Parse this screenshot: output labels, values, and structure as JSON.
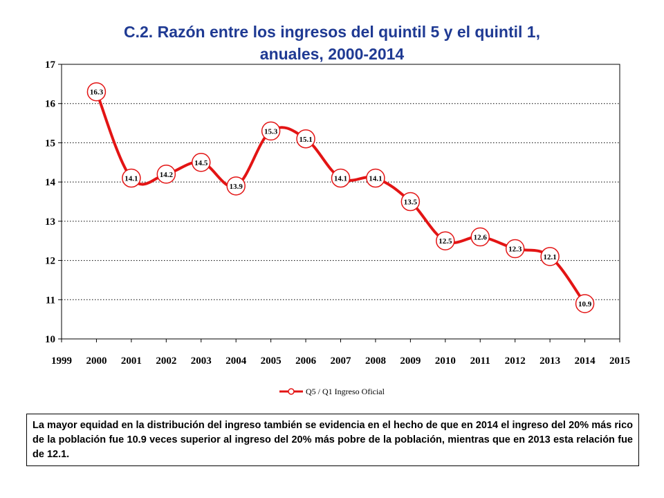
{
  "title_line1": "C.2. Razón entre los ingresos del quintil 5 y el quintil 1,",
  "title_line2": "anuales, 2000-2014",
  "note": "La mayor equidad en la distribución del ingreso también se evidencia en el hecho de que en 2014 el ingreso del 20% más rico de la población fue 10.9 veces superior al ingreso del 20% más pobre de la población, mientras que en 2013 esta relación fue de 12.1.",
  "colors": {
    "title": "#1f3a93",
    "series": "#e31414",
    "grid": "#000000"
  },
  "chart_data": {
    "type": "line",
    "x_ticks": [
      "1999",
      "2000",
      "2001",
      "2002",
      "2003",
      "2004",
      "2005",
      "2006",
      "2007",
      "2008",
      "2009",
      "2010",
      "2011",
      "2012",
      "2013",
      "2014",
      "2015"
    ],
    "y_ticks": [
      "10",
      "11",
      "12",
      "13",
      "14",
      "15",
      "16",
      "17"
    ],
    "xlim": [
      1999,
      2015
    ],
    "ylim": [
      10,
      17
    ],
    "grid": "horizontal dotted",
    "legend_position": "bottom",
    "series": [
      {
        "name": "Q5 / Q1 Ingreso Oficial",
        "x": [
          2000,
          2001,
          2002,
          2003,
          2004,
          2005,
          2006,
          2007,
          2008,
          2009,
          2010,
          2011,
          2012,
          2013,
          2014
        ],
        "values": [
          16.3,
          14.1,
          14.2,
          14.5,
          13.9,
          15.3,
          15.1,
          14.1,
          14.1,
          13.5,
          12.5,
          12.6,
          12.3,
          12.1,
          10.9
        ],
        "labels": [
          "16.3",
          "14.1",
          "14.2",
          "14.5",
          "13.9",
          "15.3",
          "15.1",
          "14.1",
          "14.1",
          "13.5",
          "12.5",
          "12.6",
          "12.3",
          "12.1",
          "10.9"
        ]
      }
    ]
  }
}
